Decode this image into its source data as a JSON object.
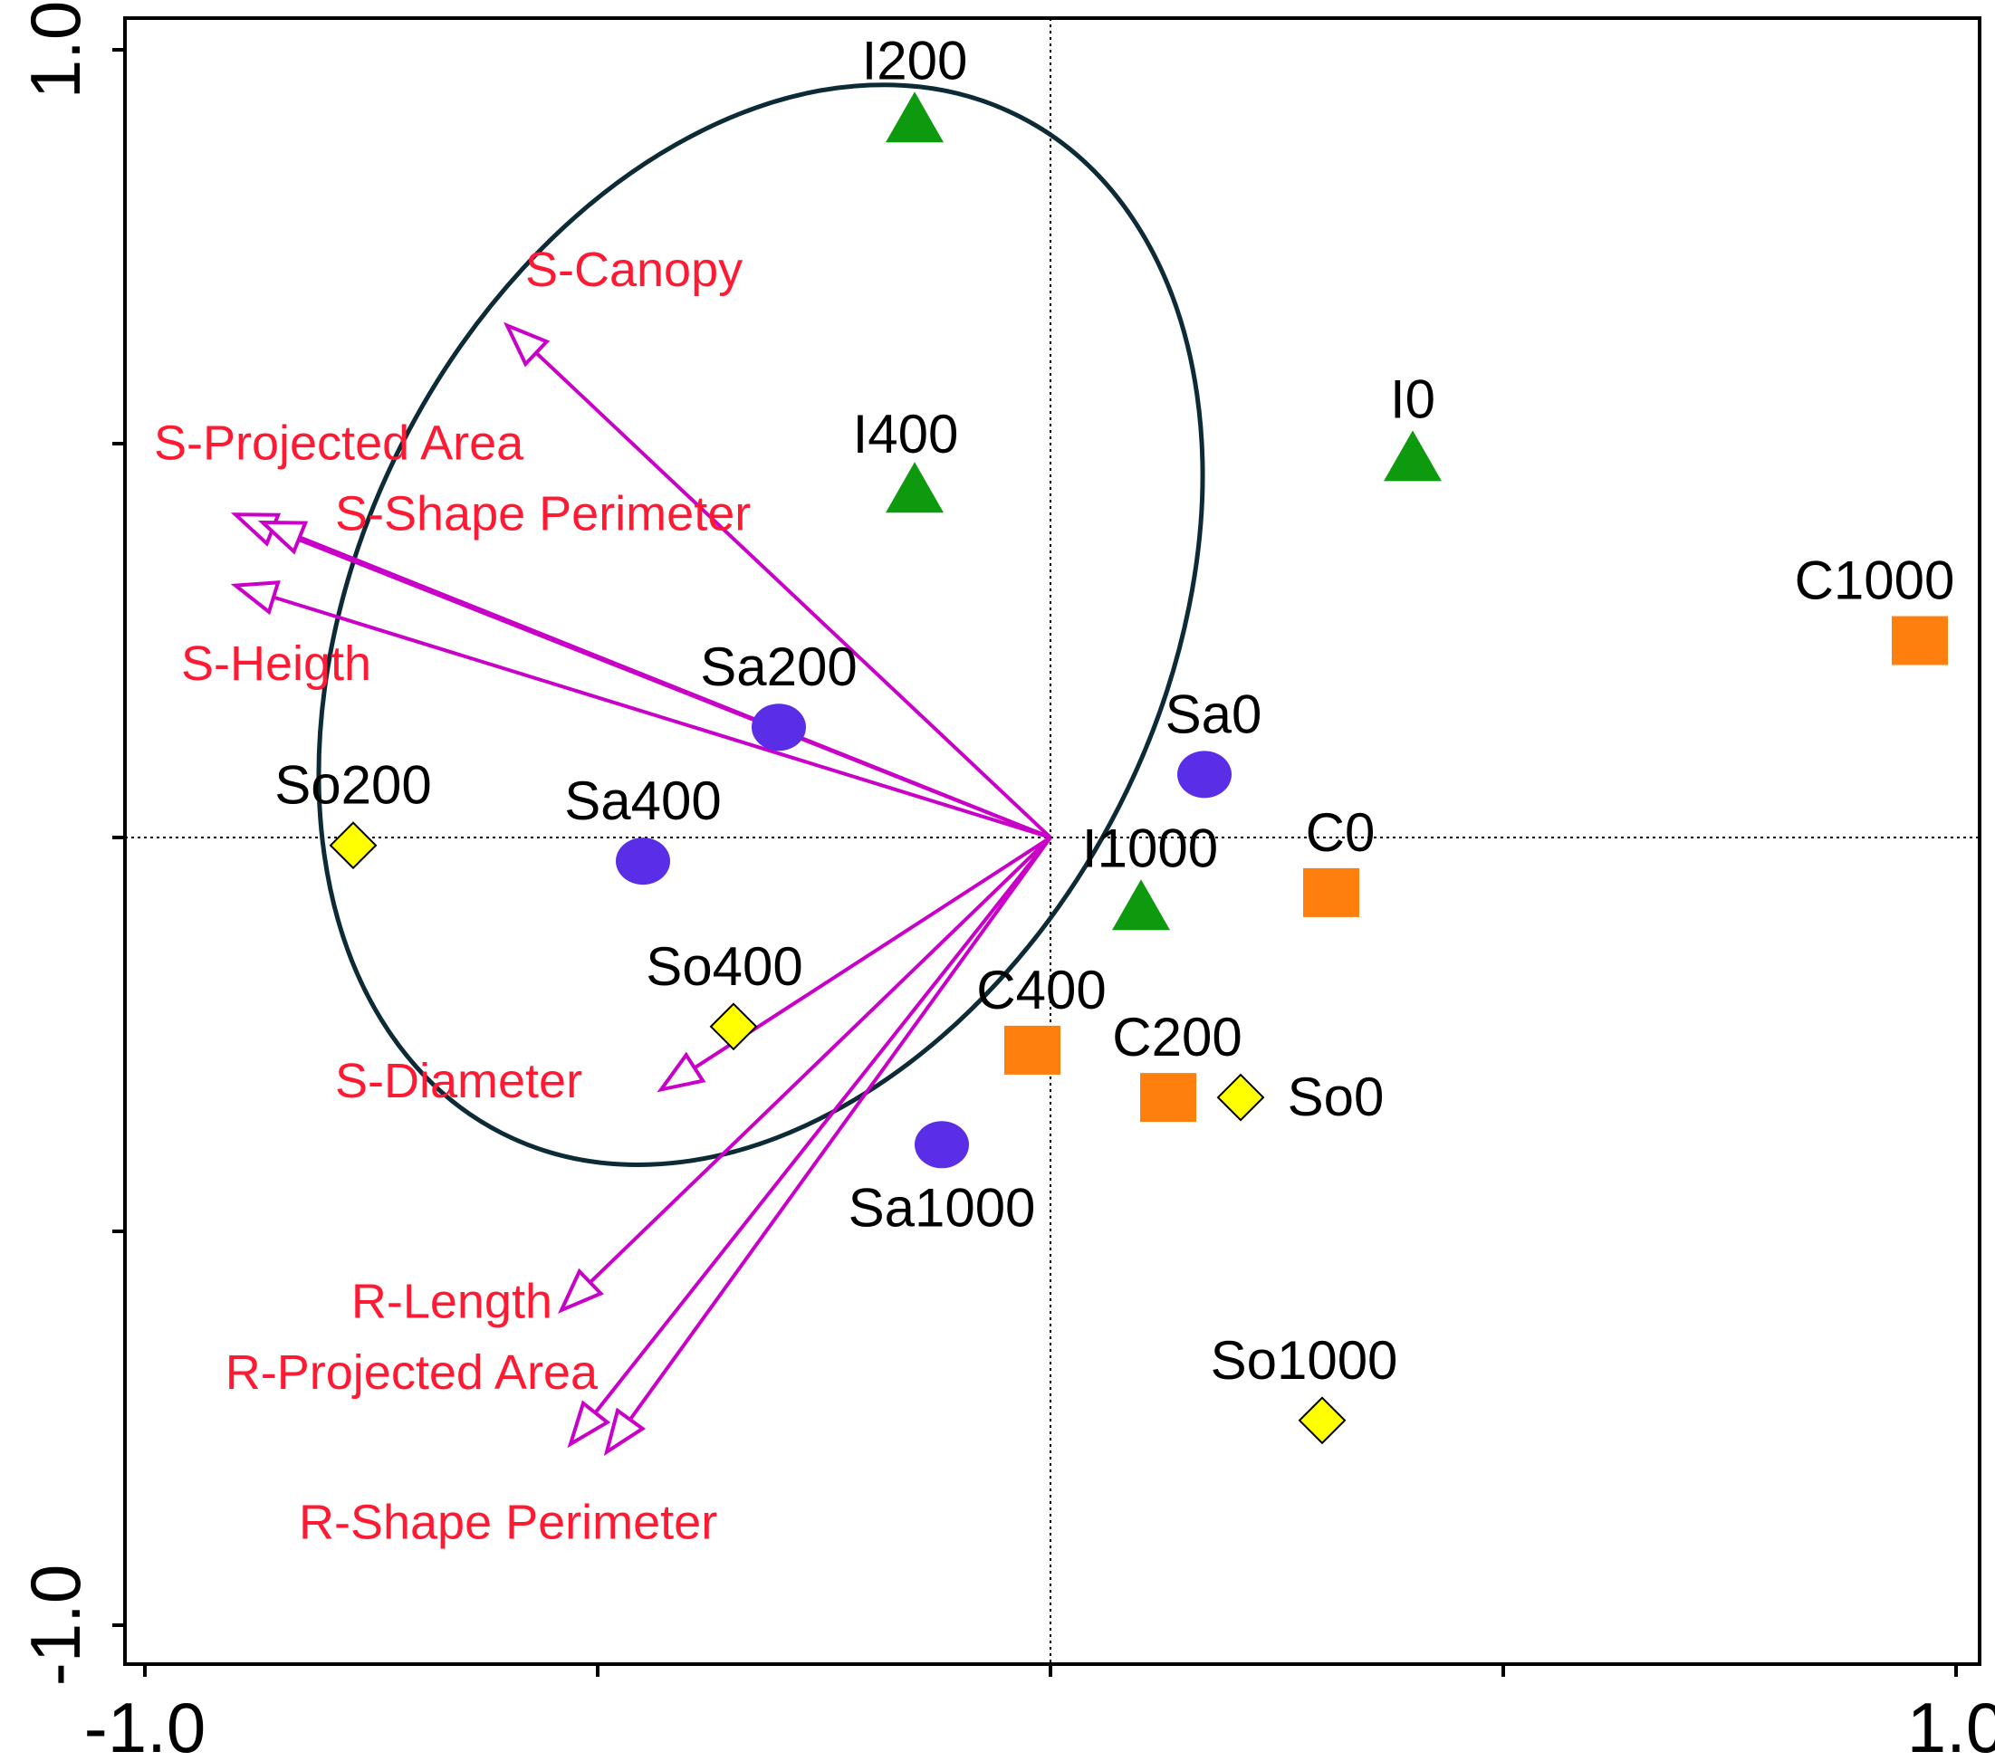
{
  "chart_data": {
    "type": "scatter",
    "subtype": "biplot",
    "x_ticks": [
      -1.0,
      -0.5,
      0.0,
      0.5,
      1.0
    ],
    "y_ticks": [
      -1.0,
      -0.5,
      0.0,
      0.5,
      1.0
    ],
    "xlim": [
      -1.03,
      1.03
    ],
    "ylim": [
      -1.03,
      1.03
    ],
    "tick_labels": {
      "x_min": "-1.0",
      "x_max": "1.0",
      "y_min": "-1.0",
      "y_max": "1.0"
    },
    "colors": {
      "I": "#0e9a0e",
      "C": "#ff7f0e",
      "Sa": "#5a2de6",
      "So": "#ffff00",
      "vector": "#c800c8",
      "variable_label": "#ff1a33",
      "ellipse": "#0d2b36"
    },
    "points": [
      {
        "label": "I200",
        "group": "I",
        "shape": "triangle",
        "x": -0.15,
        "y": 0.91
      },
      {
        "label": "I400",
        "group": "I",
        "shape": "triangle",
        "x": -0.15,
        "y": 0.44
      },
      {
        "label": "I0",
        "group": "I",
        "shape": "triangle",
        "x": 0.4,
        "y": 0.48
      },
      {
        "label": "I1000",
        "group": "I",
        "shape": "triangle",
        "x": 0.1,
        "y": -0.09
      },
      {
        "label": "C1000",
        "group": "C",
        "shape": "square",
        "x": 0.96,
        "y": 0.25
      },
      {
        "label": "C0",
        "group": "C",
        "shape": "square",
        "x": 0.31,
        "y": -0.07
      },
      {
        "label": "C400",
        "group": "C",
        "shape": "square",
        "x": -0.02,
        "y": -0.27
      },
      {
        "label": "C200",
        "group": "C",
        "shape": "square",
        "x": 0.13,
        "y": -0.33
      },
      {
        "label": "Sa200",
        "group": "Sa",
        "shape": "circle",
        "x": -0.3,
        "y": 0.14
      },
      {
        "label": "Sa0",
        "group": "Sa",
        "shape": "circle",
        "x": 0.17,
        "y": 0.08
      },
      {
        "label": "Sa400",
        "group": "Sa",
        "shape": "circle",
        "x": -0.45,
        "y": -0.03
      },
      {
        "label": "Sa1000",
        "group": "Sa",
        "shape": "circle",
        "x": -0.12,
        "y": -0.39
      },
      {
        "label": "So200",
        "group": "So",
        "shape": "diamond",
        "x": -0.77,
        "y": -0.01
      },
      {
        "label": "So400",
        "group": "So",
        "shape": "diamond",
        "x": -0.35,
        "y": -0.24
      },
      {
        "label": "So0",
        "group": "So",
        "shape": "diamond",
        "x": 0.21,
        "y": -0.33
      },
      {
        "label": "So1000",
        "group": "So",
        "shape": "diamond",
        "x": 0.3,
        "y": -0.74
      }
    ],
    "vectors": [
      {
        "label": "S-Canopy",
        "x": -0.6,
        "y": 0.65
      },
      {
        "label": "S-Projected Area",
        "x": -0.9,
        "y": 0.41
      },
      {
        "label": "S-Shape Perimeter",
        "x": -0.87,
        "y": 0.4
      },
      {
        "label": "S-Heigth",
        "x": -0.9,
        "y": 0.32
      },
      {
        "label": "S-Diameter",
        "x": -0.43,
        "y": -0.32
      },
      {
        "label": "R-Length",
        "x": -0.54,
        "y": -0.6
      },
      {
        "label": "R-Projected Area",
        "x": -0.53,
        "y": -0.77
      },
      {
        "label": "R-Shape Perimeter",
        "x": -0.49,
        "y": -0.78
      }
    ],
    "ellipse": {
      "cx": -0.32,
      "cy": 0.27,
      "rx": 0.63,
      "ry": 0.51,
      "rotation_deg": -63
    }
  }
}
